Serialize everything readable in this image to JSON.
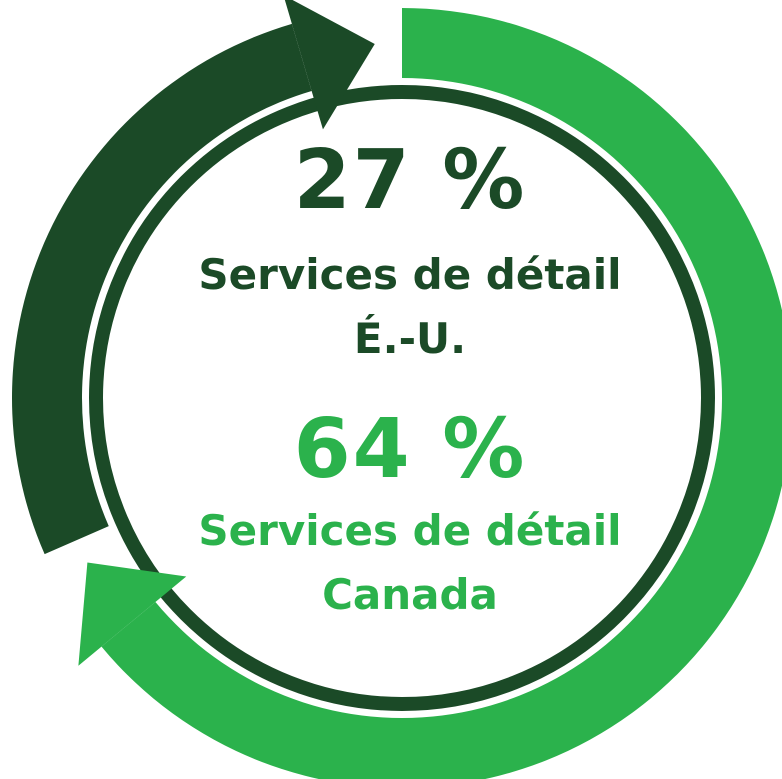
{
  "chart_data": {
    "type": "donut",
    "categories": [
      "Services de détail\nÉ.-U.",
      "Services de détail\nCanada"
    ],
    "values": [
      27,
      64
    ],
    "value_labels": [
      "27 %",
      "64 %"
    ],
    "colors": [
      "#1b4a27",
      "#2bb24c"
    ]
  }
}
